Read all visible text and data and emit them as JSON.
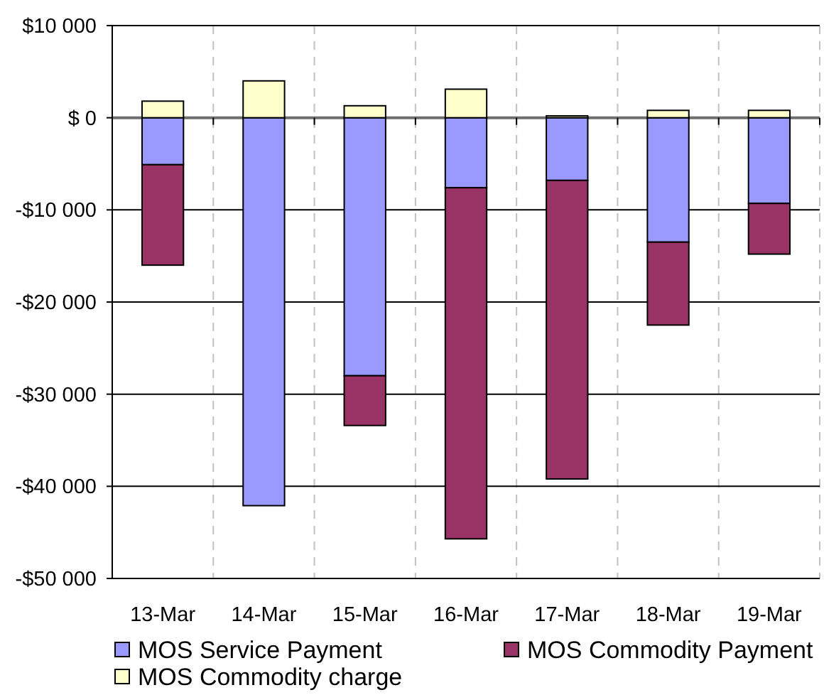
{
  "chart_data": {
    "type": "bar",
    "stacked": true,
    "categories": [
      "13-Mar",
      "14-Mar",
      "15-Mar",
      "16-Mar",
      "17-Mar",
      "18-Mar",
      "19-Mar"
    ],
    "series": [
      {
        "name": "MOS Service Payment",
        "color": "#9999ff",
        "values": [
          -5100,
          -42100,
          -28000,
          -7600,
          -6800,
          -13500,
          -9300
        ]
      },
      {
        "name": "MOS Commodity Payment",
        "color": "#993366",
        "values": [
          -10900,
          null,
          -5400,
          -38100,
          -32400,
          -9000,
          -5500
        ]
      },
      {
        "name": "MOS Commodity charge",
        "color": "#ffffcc",
        "values": [
          1800,
          4000,
          1300,
          3100,
          200,
          800,
          800
        ]
      }
    ],
    "ylim": [
      -50000,
      10000
    ],
    "yticks": [
      {
        "value": -50000,
        "label": "-$50 000"
      },
      {
        "value": -40000,
        "label": "-$40 000"
      },
      {
        "value": -30000,
        "label": "-$30 000"
      },
      {
        "value": -20000,
        "label": "-$20 000"
      },
      {
        "value": -10000,
        "label": "-$10 000"
      },
      {
        "value": 0,
        "label": "$ 0"
      },
      {
        "value": 10000,
        "label": "$10 000"
      }
    ],
    "grid": true,
    "legend": "bottom"
  }
}
